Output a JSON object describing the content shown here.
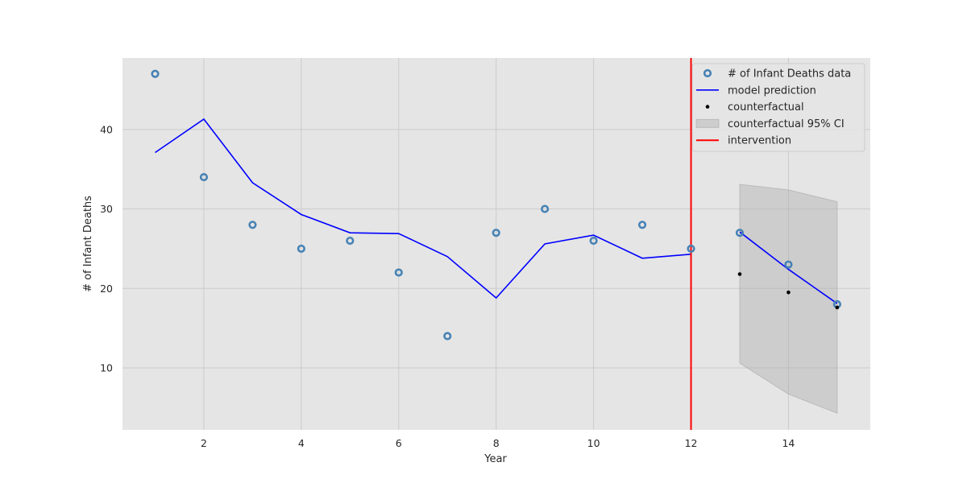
{
  "chart_data": {
    "type": "line",
    "xlabel": "Year",
    "ylabel": "# of Infant Deaths",
    "xlim": [
      0.33,
      15.68
    ],
    "ylim": [
      2.2,
      49.0
    ],
    "x_ticks": [
      2,
      4,
      6,
      8,
      10,
      12,
      14
    ],
    "y_ticks": [
      10,
      20,
      30,
      40
    ],
    "grid": true,
    "legend_position": "top-right",
    "colors": {
      "background": "#e5e5e5",
      "grid": "#cbcbcb",
      "data": "#4682b4",
      "model": "#0000ff",
      "counterfactual": "#000000",
      "ci": "#a9a9a9",
      "intervention": "#ff0000"
    },
    "series": [
      {
        "name": "# of Infant Deaths data",
        "kind": "scatter",
        "x": [
          1,
          2,
          3,
          4,
          5,
          6,
          7,
          8,
          9,
          10,
          11,
          12,
          13,
          14,
          15
        ],
        "y": [
          47,
          34,
          28,
          25,
          26,
          22,
          14,
          27,
          30,
          26,
          28,
          25,
          27,
          23,
          18
        ]
      },
      {
        "name": "model prediction",
        "kind": "line",
        "x": [
          1,
          2,
          3,
          4,
          5,
          6,
          7,
          8,
          9,
          10,
          11,
          12,
          13,
          14,
          15
        ],
        "y": [
          37.1,
          41.3,
          33.3,
          29.3,
          27.0,
          26.9,
          24.0,
          18.8,
          25.6,
          26.7,
          23.8,
          24.3,
          27.1,
          22.4,
          18.1
        ]
      },
      {
        "name": "counterfactual",
        "kind": "scatter",
        "x": [
          13,
          14,
          15
        ],
        "y": [
          21.8,
          19.5,
          17.6
        ]
      },
      {
        "name": "counterfactual 95% CI",
        "kind": "band",
        "x": [
          13,
          14,
          15
        ],
        "lower": [
          10.6,
          6.7,
          4.3
        ],
        "upper": [
          33.1,
          32.4,
          30.9
        ]
      },
      {
        "name": "intervention",
        "kind": "vline",
        "x": 12
      }
    ]
  }
}
